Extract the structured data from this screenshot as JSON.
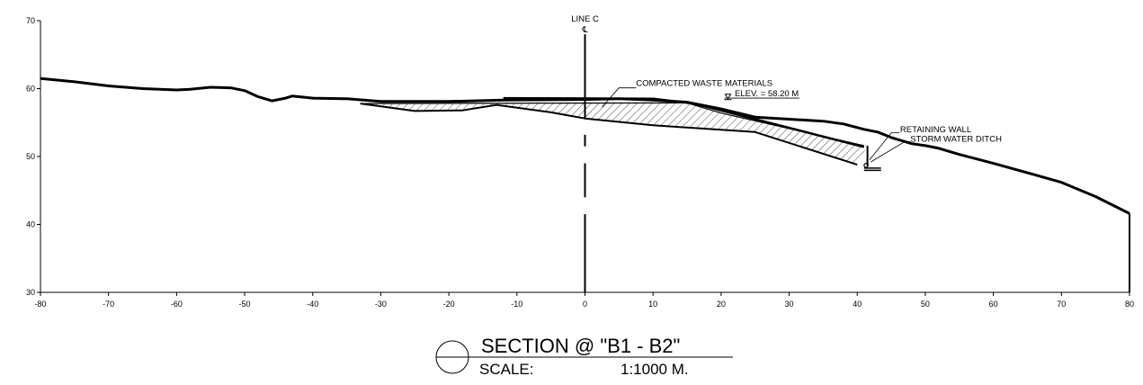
{
  "chart_data": {
    "type": "line",
    "title": "SECTION @ \"B1 - B2\"",
    "scale_label": "SCALE:",
    "scale_value": "1:1000 M.",
    "xlim": [
      -80,
      80
    ],
    "ylim": [
      30,
      70
    ],
    "x_ticks": [
      "-80",
      "-70",
      "-60",
      "-50",
      "-40",
      "-30",
      "-20",
      "-10",
      "0",
      "10",
      "20",
      "30",
      "40",
      "50",
      "60",
      "70",
      "80"
    ],
    "y_ticks": [
      "30",
      "40",
      "50",
      "60",
      "70"
    ],
    "grid": false,
    "series": [
      {
        "id": "existing-ground",
        "points": [
          [
            -80,
            61.5
          ],
          [
            -75,
            61
          ],
          [
            -70,
            60.4
          ],
          [
            -65,
            60
          ],
          [
            -60,
            59.8
          ],
          [
            -58,
            59.9
          ],
          [
            -55,
            60.2
          ],
          [
            -52,
            60.1
          ],
          [
            -50,
            59.7
          ],
          [
            -48,
            58.8
          ],
          [
            -46,
            58.2
          ],
          [
            -44,
            58.6
          ],
          [
            -43,
            58.9
          ],
          [
            -40,
            58.6
          ],
          [
            -35,
            58.5
          ],
          [
            -30,
            58.1
          ],
          [
            -20,
            58.1
          ],
          [
            -12,
            58.3
          ],
          [
            0,
            58.4
          ],
          [
            5,
            58.5
          ],
          [
            10,
            58.3
          ],
          [
            15,
            58
          ],
          [
            20,
            57
          ],
          [
            25,
            55.8
          ],
          [
            30,
            55.5
          ],
          [
            35,
            55.2
          ],
          [
            38,
            54.8
          ],
          [
            41,
            54
          ],
          [
            43,
            53.6
          ],
          [
            45,
            52.8
          ],
          [
            48,
            51.9
          ],
          [
            50,
            51.6
          ],
          [
            52,
            51.2
          ],
          [
            55,
            50.3
          ],
          [
            60,
            49
          ],
          [
            65,
            47.6
          ],
          [
            70,
            46.2
          ],
          [
            75,
            44.1
          ],
          [
            80,
            41.6
          ]
        ],
        "stroke_width": 3
      },
      {
        "id": "excavated-subgrade",
        "points": [
          [
            -33,
            57.8
          ],
          [
            -25,
            56.7
          ],
          [
            -18,
            56.8
          ],
          [
            -13,
            57.6
          ],
          [
            -5,
            56.5
          ],
          [
            0,
            55.6
          ],
          [
            10,
            54.6
          ],
          [
            25,
            53.6
          ],
          [
            40,
            48.8
          ]
        ],
        "stroke_width": 2
      },
      {
        "id": "fill-top-surface",
        "points": [
          [
            -33,
            57.8
          ],
          [
            15,
            57.9
          ],
          [
            20,
            56.4
          ],
          [
            41,
            51.6
          ]
        ],
        "stroke_width": 1.2
      },
      {
        "id": "finished-grade",
        "points": [
          [
            -12,
            58.6
          ],
          [
            10,
            58.5
          ],
          [
            16,
            57.8
          ],
          [
            25,
            55.5
          ],
          [
            41,
            51.4
          ]
        ],
        "stroke_width": 2.5
      }
    ],
    "fill_region": {
      "label": "COMPACTED WASTE MATERIALS",
      "hatch": "diagonal",
      "top": [
        [
          -33,
          57.8
        ],
        [
          15,
          57.9
        ],
        [
          20,
          56.4
        ],
        [
          41.5,
          51.6
        ]
      ],
      "bottom": [
        [
          40,
          48.8
        ],
        [
          25,
          53.6
        ],
        [
          10,
          54.6
        ],
        [
          0,
          55.6
        ],
        [
          -5,
          56.5
        ],
        [
          -13,
          57.6
        ],
        [
          -18,
          56.8
        ],
        [
          -25,
          56.7
        ],
        [
          -33,
          57.8
        ]
      ]
    },
    "centerline": {
      "x": 0,
      "label": "LINE C",
      "symbol": "℄",
      "solid_top": 68,
      "solid_bottom": 55.5,
      "dash_segments": [
        [
          53.2,
          51.5
        ],
        [
          49,
          44
        ],
        [
          41.5,
          30
        ]
      ]
    },
    "annotations": [
      {
        "id": "compacted-waste",
        "text": "COMPACTED WASTE MATERIALS",
        "leader": [
          [
            2.5,
            57.3
          ],
          [
            5,
            60.1
          ],
          [
            7.5,
            60.1
          ]
        ],
        "text_at": [
          7.5,
          60.4
        ]
      },
      {
        "id": "elevation",
        "text": "ELEV. = 58.20 M",
        "marker_at": [
          21,
          58.9
        ],
        "text_at": [
          22,
          58.9
        ],
        "underline": [
          [
            20.5,
            58.6
          ],
          [
            31.5,
            58.6
          ]
        ]
      },
      {
        "id": "retaining-wall",
        "text": "RETAINING WALL",
        "leader": [
          [
            41.8,
            49.5
          ],
          [
            45,
            53.5
          ],
          [
            46.2,
            53.5
          ]
        ],
        "text_at": [
          46.3,
          53.6
        ]
      },
      {
        "id": "storm-water-ditch",
        "text": "STORM WATER DITCH",
        "leader": [
          [
            42,
            49.2
          ],
          [
            47,
            52.2
          ],
          [
            47.8,
            52.2
          ]
        ],
        "text_at": [
          47.8,
          52.2
        ]
      }
    ],
    "retaining_wall": {
      "x": 41.5,
      "top": 51.6,
      "bottom": 48.6
    },
    "storm_ditch": {
      "x_from": 41,
      "x_to": 43.5,
      "y": 48.3
    }
  }
}
